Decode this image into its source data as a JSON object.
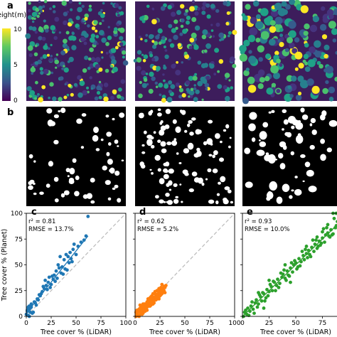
{
  "panel_labels": [
    "a",
    "b",
    "c",
    "d",
    "e"
  ],
  "colorbar": {
    "label": "Height(m)",
    "ticks": [
      0,
      5,
      10
    ],
    "colormap": "viridis",
    "range": [
      0,
      10
    ]
  },
  "chart_data": [
    {
      "panel": "c",
      "type": "scatter",
      "color": "#1f77b4",
      "stats_r2": "r² = 0.81",
      "stats_rmse": "RMSE = 13.7%",
      "xlabel": "Tree cover % (LiDAR)",
      "ylabel": "Tree cover % (Planet)",
      "xlim": [
        0,
        100
      ],
      "ylim": [
        0,
        100
      ],
      "xticks": [
        0,
        25,
        50,
        75,
        100
      ],
      "yticks": [
        0,
        25,
        50,
        75,
        100
      ],
      "one_to_one_line": true,
      "fit_line": [
        [
          0,
          3
        ],
        [
          62,
          78
        ]
      ],
      "x": [
        0,
        1,
        2,
        3,
        4,
        5,
        2,
        1,
        6,
        3,
        8,
        10,
        12,
        5,
        7,
        4,
        9,
        15,
        18,
        14,
        20,
        22,
        25,
        16,
        19,
        13,
        17,
        21,
        23,
        27,
        28,
        30,
        24,
        26,
        29,
        33,
        35,
        32,
        38,
        40,
        36,
        42,
        44,
        45,
        47,
        39,
        43,
        48,
        50,
        52,
        46,
        55,
        37,
        60,
        62,
        58,
        41,
        31,
        34,
        3,
        2,
        11
      ],
      "y": [
        2,
        5,
        8,
        10,
        4,
        12,
        1,
        6,
        3,
        7,
        14,
        11,
        16,
        9,
        4,
        8,
        13,
        22,
        27,
        20,
        30,
        33,
        31,
        24,
        35,
        21,
        29,
        26,
        38,
        36,
        40,
        44,
        28,
        39,
        34,
        47,
        42,
        50,
        55,
        60,
        48,
        58,
        62,
        56,
        65,
        46,
        52,
        70,
        60,
        68,
        53,
        72,
        41,
        78,
        97,
        74,
        45,
        37,
        58,
        0,
        9,
        17
      ]
    },
    {
      "panel": "d",
      "type": "scatter",
      "color": "#ff7f0e",
      "stats_r2": "r² = 0.62",
      "stats_rmse": "RMSE = 5.2%",
      "xlabel": "Tree cover % (LiDAR)",
      "ylabel": "",
      "xlim": [
        0,
        100
      ],
      "ylim": [
        0,
        100
      ],
      "xticks": [
        0,
        25,
        50,
        75,
        100
      ],
      "yticks": [
        0,
        25,
        50,
        75,
        100
      ],
      "one_to_one_line": true,
      "fit_line": [
        [
          0,
          2
        ],
        [
          30,
          28
        ]
      ],
      "x": [
        1,
        2,
        3,
        4,
        5,
        6,
        7,
        8,
        9,
        10,
        11,
        12,
        13,
        14,
        15,
        16,
        17,
        18,
        19,
        20,
        21,
        22,
        23,
        24,
        25,
        26,
        27,
        28,
        29,
        30,
        3,
        5,
        8,
        10,
        12,
        14,
        16,
        18,
        20,
        22,
        24,
        26,
        28,
        2,
        4,
        6,
        9,
        11,
        13,
        15,
        17,
        19,
        21,
        23,
        25,
        27,
        7,
        9,
        12,
        15,
        18,
        20,
        23,
        26,
        29,
        4,
        6,
        10,
        14,
        16,
        19,
        22,
        25,
        28,
        31,
        1,
        3,
        8,
        11,
        13,
        17,
        21,
        24,
        27,
        30,
        5,
        12,
        18,
        24,
        2,
        7
      ],
      "y": [
        0,
        3,
        1,
        5,
        2,
        6,
        4,
        8,
        7,
        10,
        9,
        12,
        11,
        13,
        15,
        14,
        16,
        18,
        17,
        19,
        21,
        20,
        22,
        23,
        25,
        24,
        26,
        27,
        29,
        28,
        5,
        8,
        3,
        12,
        6,
        16,
        11,
        14,
        22,
        17,
        19,
        28,
        23,
        1,
        7,
        4,
        12,
        9,
        15,
        10,
        20,
        13,
        18,
        25,
        21,
        22,
        2,
        6,
        14,
        18,
        12,
        24,
        19,
        21,
        25,
        0,
        9,
        5,
        10,
        19,
        15,
        25,
        20,
        24,
        30,
        4,
        1,
        12,
        6,
        17,
        13,
        16,
        27,
        31,
        23,
        11,
        9,
        22,
        17,
        6,
        10
      ]
    },
    {
      "panel": "e",
      "type": "scatter",
      "color": "#2ca02c",
      "stats_r2": "r² = 0.93",
      "stats_rmse": "RMSE = 10.0%",
      "xlabel": "Tree cover % (LiDAR)",
      "ylabel": "",
      "xlim": [
        0,
        100
      ],
      "ylim": [
        0,
        100
      ],
      "xticks": [
        0,
        25,
        50,
        75,
        100
      ],
      "yticks": [
        0,
        25,
        50,
        75,
        100
      ],
      "one_to_one_line": true,
      "fit_line": [
        [
          0,
          0
        ],
        [
          100,
          100
        ]
      ],
      "x": [
        1,
        2,
        4,
        5,
        7,
        8,
        10,
        12,
        13,
        15,
        17,
        18,
        20,
        22,
        23,
        25,
        27,
        28,
        30,
        32,
        33,
        35,
        37,
        38,
        40,
        42,
        43,
        45,
        47,
        48,
        50,
        52,
        53,
        55,
        57,
        58,
        60,
        62,
        63,
        65,
        67,
        68,
        70,
        72,
        73,
        75,
        77,
        78,
        80,
        82,
        83,
        85,
        87,
        88,
        90,
        92,
        93,
        95,
        97,
        98,
        100,
        3,
        6,
        9,
        14,
        19,
        24,
        29,
        34,
        39,
        44,
        49,
        54,
        59,
        64,
        69,
        74,
        79,
        84,
        89,
        94,
        99,
        11,
        16,
        21,
        26,
        31,
        36,
        41,
        46,
        51,
        56,
        61,
        66,
        71,
        76,
        81,
        86,
        91,
        96,
        85,
        90,
        95,
        100,
        88,
        93,
        98,
        80,
        75,
        70,
        60,
        45,
        40,
        15,
        20,
        25
      ],
      "y": [
        0,
        4,
        2,
        8,
        5,
        10,
        7,
        13,
        16,
        12,
        19,
        15,
        22,
        18,
        26,
        24,
        29,
        25,
        33,
        30,
        36,
        32,
        38,
        41,
        37,
        44,
        40,
        47,
        43,
        50,
        52,
        48,
        56,
        53,
        59,
        55,
        61,
        64,
        60,
        67,
        63,
        70,
        66,
        73,
        69,
        76,
        72,
        79,
        81,
        77,
        84,
        80,
        86,
        88,
        85,
        90,
        92,
        94,
        96,
        98,
        100,
        6,
        1,
        14,
        9,
        23,
        20,
        34,
        28,
        45,
        39,
        54,
        49,
        65,
        58,
        74,
        71,
        86,
        79,
        92,
        97,
        100,
        3,
        21,
        15,
        31,
        25,
        42,
        35,
        52,
        46,
        63,
        57,
        74,
        68,
        85,
        78,
        95,
        100,
        100,
        100,
        100,
        100,
        100,
        100,
        100,
        100,
        89,
        82,
        77,
        68,
        33,
        50,
        23,
        8,
        35
      ]
    }
  ]
}
